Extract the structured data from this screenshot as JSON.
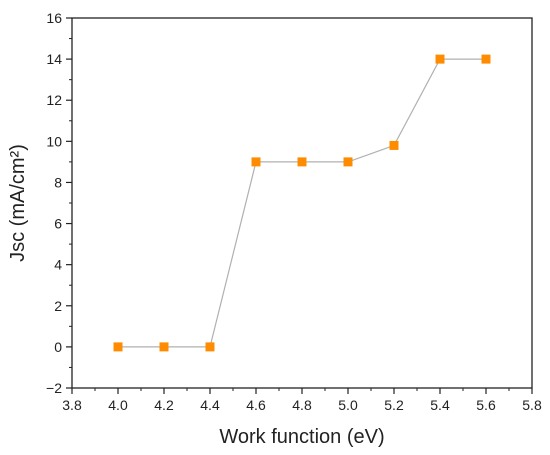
{
  "chart_data": {
    "type": "line",
    "x": [
      4.0,
      4.2,
      4.4,
      4.6,
      4.8,
      5.0,
      5.2,
      5.4,
      5.6
    ],
    "series": [
      {
        "values": [
          0,
          0,
          0,
          9.0,
          9.0,
          9.0,
          9.8,
          14.0,
          14.0
        ]
      }
    ],
    "xlabel": "Work function (eV)",
    "ylabel": "Jsc (mA/cm²)",
    "xlim": [
      3.8,
      5.8
    ],
    "ylim": [
      -2,
      16
    ],
    "x_ticks": [
      "3.8",
      "4.0",
      "4.2",
      "4.4",
      "4.6",
      "4.8",
      "5.0",
      "5.2",
      "5.4",
      "5.6",
      "5.8"
    ],
    "y_ticks": [
      "−2",
      "0",
      "2",
      "4",
      "6",
      "8",
      "10",
      "12",
      "14",
      "16"
    ],
    "grid": false,
    "legend": "none",
    "colors": {
      "marker": "#FF8C00",
      "line": "#B0B0B0",
      "axis": "#222222"
    }
  }
}
